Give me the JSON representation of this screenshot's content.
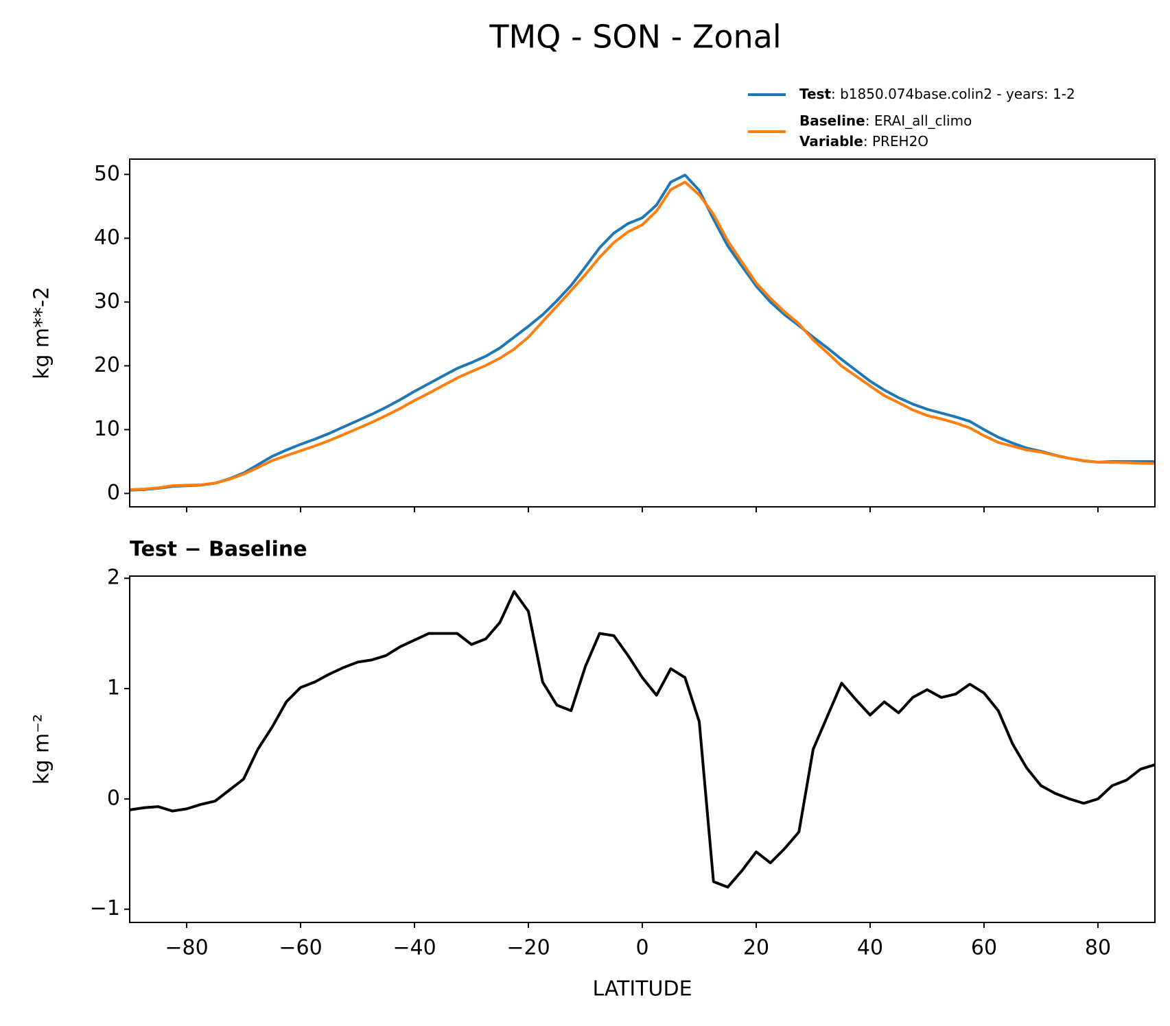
{
  "title": "TMQ - SON - Zonal",
  "chart_data": [
    {
      "type": "line",
      "ylabel": "kg m**-2",
      "x": [
        -90,
        -87.5,
        -85,
        -82.5,
        -80,
        -77.5,
        -75,
        -72.5,
        -70,
        -67.5,
        -65,
        -62.5,
        -60,
        -57.5,
        -55,
        -52.5,
        -50,
        -47.5,
        -45,
        -42.5,
        -40,
        -37.5,
        -35,
        -32.5,
        -30,
        -27.5,
        -25,
        -22.5,
        -20,
        -17.5,
        -15,
        -12.5,
        -10,
        -7.5,
        -5,
        -2.5,
        0,
        2.5,
        5,
        7.5,
        10,
        12.5,
        15,
        17.5,
        20,
        22.5,
        25,
        27.5,
        30,
        32.5,
        35,
        37.5,
        40,
        42.5,
        45,
        47.5,
        50,
        52.5,
        55,
        57.5,
        60,
        62.5,
        65,
        67.5,
        70,
        72.5,
        75,
        77.5,
        80,
        82.5,
        85,
        87.5,
        90
      ],
      "series": [
        {
          "name": "Test",
          "details": ": b1850.074base.colin2 - years: 1-2",
          "color": "#1f77b4",
          "values": [
            0.5,
            0.6,
            0.8,
            1.1,
            1.2,
            1.3,
            1.6,
            2.3,
            3.2,
            4.5,
            5.8,
            6.8,
            7.7,
            8.5,
            9.4,
            10.4,
            11.4,
            12.4,
            13.5,
            14.7,
            16.0,
            17.2,
            18.4,
            19.6,
            20.5,
            21.5,
            22.8,
            24.5,
            26.2,
            28.0,
            30.2,
            32.6,
            35.5,
            38.5,
            40.8,
            42.3,
            43.2,
            45.2,
            48.8,
            49.9,
            47.5,
            43.0,
            38.8,
            35.6,
            32.5,
            30.0,
            28.0,
            26.3,
            24.5,
            22.8,
            21.0,
            19.3,
            17.6,
            16.2,
            15.0,
            14.0,
            13.2,
            12.6,
            12.0,
            11.3,
            10.0,
            8.8,
            7.9,
            7.1,
            6.6,
            6.0,
            5.5,
            5.1,
            4.9,
            5.0,
            5.0,
            5.0,
            5.0
          ]
        },
        {
          "name": "Baseline",
          "details": ": ERAI_all_climo",
          "variable_name": "Variable",
          "variable": ": PREH2O",
          "color": "#ff7f0e",
          "values": [
            0.6,
            0.68,
            0.87,
            1.21,
            1.29,
            1.35,
            1.62,
            2.22,
            3.02,
            4.05,
            5.15,
            5.92,
            6.69,
            7.44,
            8.27,
            9.21,
            10.16,
            11.14,
            12.2,
            13.32,
            14.56,
            15.7,
            16.9,
            18.1,
            19.1,
            20.05,
            21.2,
            22.62,
            24.5,
            26.94,
            29.35,
            31.8,
            34.3,
            37.0,
            39.32,
            41.0,
            42.1,
            44.26,
            47.62,
            48.8,
            46.8,
            43.75,
            39.6,
            36.25,
            32.98,
            30.58,
            28.45,
            26.6,
            24.05,
            22.05,
            19.95,
            18.4,
            16.84,
            15.32,
            14.22,
            13.08,
            12.21,
            11.68,
            11.05,
            10.26,
            9.04,
            8.0,
            7.4,
            6.82,
            6.48,
            5.95,
            5.5,
            5.14,
            4.9,
            4.88,
            4.83,
            4.73,
            4.69
          ]
        }
      ],
      "xlim": [
        -90,
        90
      ],
      "xticks": [
        -80,
        -60,
        -40,
        -20,
        0,
        20,
        40,
        60,
        80
      ],
      "ylim": [
        -2.1,
        52.4
      ],
      "yticks": [
        0,
        10,
        20,
        30,
        40,
        50
      ]
    },
    {
      "type": "line",
      "title": "Test − Baseline",
      "xlabel": "LATITUDE",
      "ylabel": "kg m⁻²",
      "x": [
        -90,
        -87.5,
        -85,
        -82.5,
        -80,
        -77.5,
        -75,
        -72.5,
        -70,
        -67.5,
        -65,
        -62.5,
        -60,
        -57.5,
        -55,
        -52.5,
        -50,
        -47.5,
        -45,
        -42.5,
        -40,
        -37.5,
        -35,
        -32.5,
        -30,
        -27.5,
        -25,
        -22.5,
        -20,
        -17.5,
        -15,
        -12.5,
        -10,
        -7.5,
        -5,
        -2.5,
        0,
        2.5,
        5,
        7.5,
        10,
        12.5,
        15,
        17.5,
        20,
        22.5,
        25,
        27.5,
        30,
        32.5,
        35,
        37.5,
        40,
        42.5,
        45,
        47.5,
        50,
        52.5,
        55,
        57.5,
        60,
        62.5,
        65,
        67.5,
        70,
        72.5,
        75,
        77.5,
        80,
        82.5,
        85,
        87.5,
        90
      ],
      "color": "#000000",
      "values": [
        -0.1,
        -0.08,
        -0.07,
        -0.11,
        -0.09,
        -0.05,
        -0.02,
        0.08,
        0.18,
        0.45,
        0.65,
        0.88,
        1.01,
        1.06,
        1.13,
        1.19,
        1.24,
        1.26,
        1.3,
        1.38,
        1.44,
        1.5,
        1.5,
        1.5,
        1.4,
        1.45,
        1.6,
        1.88,
        1.7,
        1.06,
        0.85,
        0.8,
        1.2,
        1.5,
        1.48,
        1.3,
        1.1,
        0.94,
        1.18,
        1.1,
        0.7,
        -0.75,
        -0.8,
        -0.65,
        -0.48,
        -0.58,
        -0.45,
        -0.3,
        0.45,
        0.75,
        1.05,
        0.9,
        0.76,
        0.88,
        0.78,
        0.92,
        0.99,
        0.92,
        0.95,
        1.04,
        0.96,
        0.8,
        0.5,
        0.28,
        0.12,
        0.05,
        0.0,
        -0.04,
        0.0,
        0.12,
        0.17,
        0.27,
        0.31
      ],
      "xlim": [
        -90,
        90
      ],
      "xticks": [
        {
          "value": -80,
          "label": "−80"
        },
        {
          "value": -60,
          "label": "−60"
        },
        {
          "value": -40,
          "label": "−40"
        },
        {
          "value": -20,
          "label": "−20"
        },
        0,
        20,
        40,
        60,
        80
      ],
      "ylim": [
        -1.12,
        2.02
      ],
      "yticks": [
        {
          "value": -1,
          "label": "−1"
        },
        0,
        1,
        2
      ]
    }
  ]
}
